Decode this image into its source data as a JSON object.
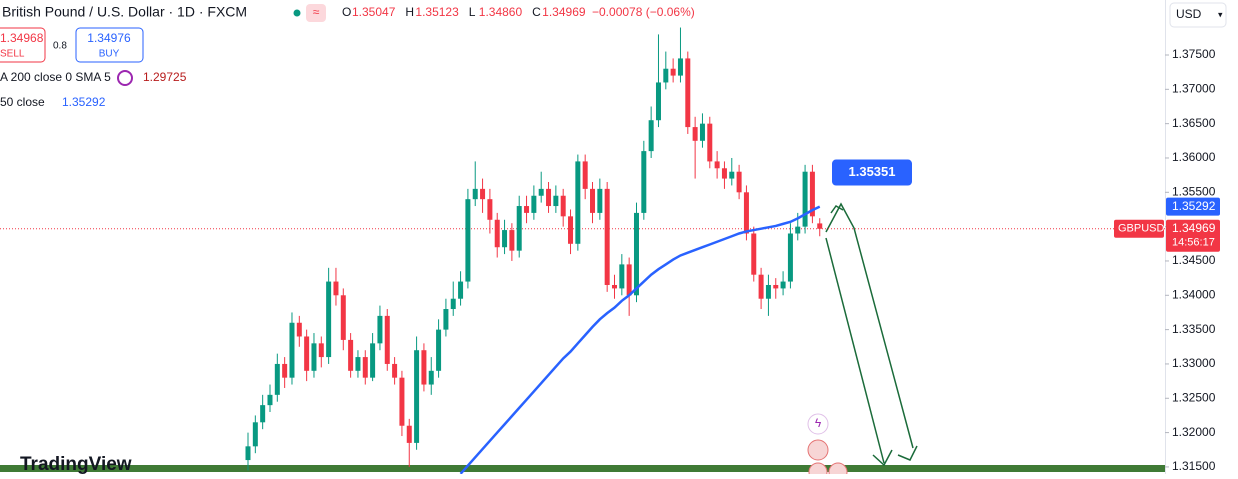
{
  "header": {
    "title": "British Pound / U.S. Dollar · 1D · FXCM",
    "ohlc": [
      {
        "key": "O",
        "value": "1.35047"
      },
      {
        "key": "H",
        "value": "1.35123"
      },
      {
        "key": "L",
        "value": "1.34860"
      },
      {
        "key": "C",
        "value": "1.34969"
      }
    ],
    "change": "−0.00078 (−0.06%)",
    "currency": "USD"
  },
  "trade": {
    "sell_price": "1.34968",
    "sell": "SELL",
    "spread": "0.8",
    "buy_price": "1.34976",
    "buy": "BUY"
  },
  "indicators": [
    {
      "name": "A 200 close 0 SMA 5",
      "value": "1.29725"
    },
    {
      "name": "50 close",
      "value": "1.35292"
    }
  ],
  "symbol": "GBPUSD",
  "countdown": "14:56:17",
  "watermark": "TradingView",
  "chart_data": {
    "type": "candlestick",
    "up_color": "#089981",
    "down_color": "#f23645",
    "ylim": [
      1.31397,
      1.38301
    ],
    "yticks": [
      {
        "value": 1.315,
        "label": "1.31500"
      },
      {
        "value": 1.32,
        "label": "1.32000"
      },
      {
        "value": 1.325,
        "label": "1.32500"
      },
      {
        "value": 1.33,
        "label": "1.33000"
      },
      {
        "value": 1.335,
        "label": "1.33500"
      },
      {
        "value": 1.34,
        "label": "1.34000"
      },
      {
        "value": 1.345,
        "label": "1.34500"
      },
      {
        "value": 1.35,
        "label": "1.35000"
      },
      {
        "value": 1.355,
        "label": "1.35500"
      },
      {
        "value": 1.36,
        "label": "1.36000"
      },
      {
        "value": 1.365,
        "label": "1.36500"
      },
      {
        "value": 1.37,
        "label": "1.37000"
      },
      {
        "value": 1.375,
        "label": "1.37500"
      }
    ],
    "open": [
      1.316,
      1.318,
      1.3215,
      1.324,
      1.3255,
      1.33,
      1.328,
      1.336,
      1.334,
      1.329,
      1.333,
      1.331,
      1.342,
      1.34,
      1.3335,
      1.329,
      1.331,
      1.328,
      1.333,
      1.337,
      1.33,
      1.328,
      1.321,
      1.3185,
      1.332,
      1.327,
      1.329,
      1.335,
      1.338,
      1.3395,
      1.342,
      1.354,
      1.3555,
      1.354,
      1.351,
      1.347,
      1.3495,
      1.3465,
      1.353,
      1.352,
      1.3545,
      1.3555,
      1.353,
      1.3545,
      1.3515,
      1.3475,
      1.3595,
      1.3555,
      1.352,
      1.3555,
      1.3415,
      1.341,
      1.3445,
      1.34,
      1.352,
      1.361,
      1.3655,
      1.371,
      1.373,
      1.372,
      1.3745,
      1.3645,
      1.3625,
      1.365,
      1.3595,
      1.3585,
      1.357,
      1.358,
      1.355,
      1.349,
      1.343,
      1.3395,
      1.3415,
      1.341,
      1.342,
      1.349,
      1.35,
      1.358,
      1.35047
    ],
    "high": [
      1.32,
      1.3225,
      1.3255,
      1.327,
      1.3315,
      1.331,
      1.3375,
      1.337,
      1.335,
      1.3345,
      1.334,
      1.344,
      1.344,
      1.341,
      1.3345,
      1.332,
      1.332,
      1.3345,
      1.3385,
      1.338,
      1.331,
      1.329,
      1.322,
      1.334,
      1.333,
      1.331,
      1.3365,
      1.3395,
      1.342,
      1.3435,
      1.3555,
      1.3595,
      1.357,
      1.3555,
      1.352,
      1.351,
      1.3505,
      1.3545,
      1.3545,
      1.356,
      1.358,
      1.3565,
      1.356,
      1.3555,
      1.3525,
      1.3605,
      1.3605,
      1.3565,
      1.357,
      1.3565,
      1.343,
      1.346,
      1.3455,
      1.3535,
      1.3625,
      1.3675,
      1.378,
      1.3755,
      1.3745,
      1.379,
      1.3755,
      1.366,
      1.3665,
      1.366,
      1.361,
      1.3595,
      1.36,
      1.359,
      1.356,
      1.35,
      1.344,
      1.343,
      1.3425,
      1.3435,
      1.3505,
      1.352,
      1.359,
      1.359,
      1.35123
    ],
    "low": [
      1.3145,
      1.317,
      1.3205,
      1.323,
      1.3245,
      1.3265,
      1.327,
      1.3325,
      1.3275,
      1.328,
      1.3295,
      1.33,
      1.3385,
      1.332,
      1.328,
      1.328,
      1.327,
      1.3275,
      1.332,
      1.329,
      1.327,
      1.3195,
      1.315,
      1.3175,
      1.326,
      1.3255,
      1.328,
      1.334,
      1.337,
      1.3385,
      1.341,
      1.353,
      1.352,
      1.349,
      1.3455,
      1.346,
      1.345,
      1.3455,
      1.3505,
      1.351,
      1.3535,
      1.352,
      1.352,
      1.35,
      1.346,
      1.3465,
      1.354,
      1.3505,
      1.351,
      1.3405,
      1.3395,
      1.34,
      1.337,
      1.339,
      1.351,
      1.36,
      1.3645,
      1.37,
      1.371,
      1.371,
      1.3635,
      1.357,
      1.3615,
      1.3585,
      1.357,
      1.3555,
      1.356,
      1.354,
      1.348,
      1.342,
      1.338,
      1.337,
      1.3395,
      1.34,
      1.341,
      1.348,
      1.349,
      1.3505,
      1.3486
    ],
    "close": [
      1.318,
      1.3215,
      1.324,
      1.3255,
      1.33,
      1.328,
      1.336,
      1.334,
      1.329,
      1.333,
      1.331,
      1.342,
      1.34,
      1.3335,
      1.329,
      1.331,
      1.328,
      1.333,
      1.337,
      1.33,
      1.328,
      1.321,
      1.3185,
      1.332,
      1.327,
      1.329,
      1.335,
      1.338,
      1.3395,
      1.342,
      1.354,
      1.3555,
      1.354,
      1.351,
      1.347,
      1.3495,
      1.3465,
      1.353,
      1.352,
      1.3545,
      1.3555,
      1.353,
      1.3545,
      1.3515,
      1.3475,
      1.3595,
      1.3555,
      1.352,
      1.3555,
      1.3415,
      1.341,
      1.3445,
      1.34,
      1.352,
      1.361,
      1.3655,
      1.371,
      1.373,
      1.372,
      1.3745,
      1.3645,
      1.3625,
      1.365,
      1.3595,
      1.3585,
      1.357,
      1.358,
      1.355,
      1.349,
      1.343,
      1.3395,
      1.3415,
      1.341,
      1.342,
      1.349,
      1.35,
      1.358,
      1.3515,
      1.34969
    ],
    "overlay": {
      "color": "#2962ff",
      "values": [
        null,
        null,
        null,
        null,
        null,
        null,
        null,
        null,
        null,
        null,
        null,
        null,
        null,
        null,
        null,
        null,
        null,
        null,
        null,
        null,
        null,
        null,
        null,
        null,
        null,
        null,
        null,
        null,
        null,
        1.314,
        1.3152,
        1.3164,
        1.3176,
        1.3188,
        1.32,
        1.3212,
        1.3224,
        1.3236,
        1.3248,
        1.326,
        1.3272,
        1.3284,
        1.3296,
        1.3308,
        1.3318,
        1.333,
        1.3342,
        1.3354,
        1.3365,
        1.3374,
        1.3382,
        1.3392,
        1.34,
        1.341,
        1.342,
        1.343,
        1.3438,
        1.3445,
        1.3452,
        1.3458,
        1.3462,
        1.3466,
        1.347,
        1.3474,
        1.3478,
        1.3482,
        1.3486,
        1.349,
        1.3493,
        1.3495,
        1.3497,
        1.3499,
        1.3501,
        1.3504,
        1.3507,
        1.3512,
        1.3518,
        1.3524,
        1.35292
      ]
    },
    "annotations": [
      1.35351
    ]
  }
}
